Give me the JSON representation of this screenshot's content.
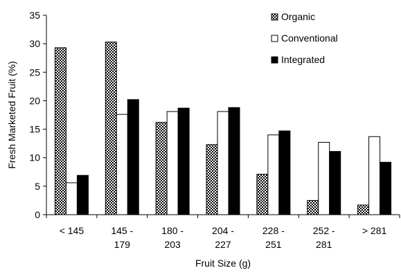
{
  "chart_data": {
    "type": "bar",
    "title": "",
    "xlabel": "Fruit Size (g)",
    "ylabel": "Fresh Marketed Fruit (%)",
    "ylim": [
      0,
      35
    ],
    "yticks": [
      0,
      5,
      10,
      15,
      20,
      25,
      30,
      35
    ],
    "grid": false,
    "legend_position": "top-right",
    "categories": [
      [
        "< 145"
      ],
      [
        "145 -",
        "179"
      ],
      [
        "180 -",
        "203"
      ],
      [
        "204 -",
        "227"
      ],
      [
        "228 -",
        "251"
      ],
      [
        "252 -",
        "281"
      ],
      [
        "> 281"
      ]
    ],
    "series": [
      {
        "name": "Organic",
        "fill": "checker",
        "values": [
          29.3,
          30.3,
          16.2,
          12.3,
          7.1,
          2.5,
          1.7
        ]
      },
      {
        "name": "Conventional",
        "fill": "#ffffff",
        "values": [
          5.6,
          17.6,
          18.1,
          18.1,
          14.0,
          12.7,
          13.7
        ]
      },
      {
        "name": "Integrated",
        "fill": "#000000",
        "values": [
          6.9,
          20.2,
          18.7,
          18.8,
          14.7,
          11.1,
          9.2
        ]
      }
    ]
  }
}
